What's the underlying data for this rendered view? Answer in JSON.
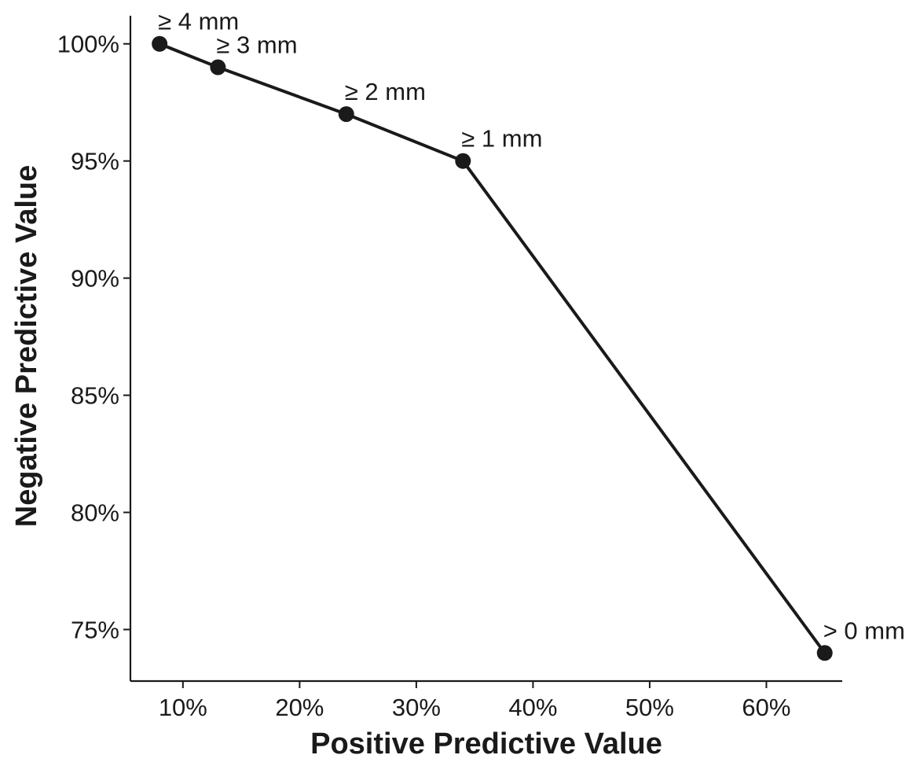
{
  "chart_data": {
    "type": "line",
    "title": "",
    "xlabel": "Positive Predictive Value",
    "ylabel": "Negative Predictive Value",
    "xlim": [
      5.5,
      66.5
    ],
    "ylim": [
      72.8,
      101.2
    ],
    "x_ticks": [
      10,
      20,
      30,
      40,
      50,
      60
    ],
    "x_tick_labels": [
      "10%",
      "20%",
      "30%",
      "40%",
      "50%",
      "60%"
    ],
    "y_ticks": [
      75,
      80,
      85,
      90,
      95,
      100
    ],
    "y_tick_labels": [
      "75%",
      "80%",
      "85%",
      "90%",
      "95%",
      "100%"
    ],
    "grid": false,
    "legend": "none",
    "series": [
      {
        "points": [
          {
            "x": 8,
            "y": 100,
            "label": "≥ 4 mm"
          },
          {
            "x": 13,
            "y": 99,
            "label": "≥ 3 mm"
          },
          {
            "x": 24,
            "y": 97,
            "label": "≥ 2 mm"
          },
          {
            "x": 34,
            "y": 95,
            "label": "≥ 1 mm"
          },
          {
            "x": 65,
            "y": 74,
            "label": "> 0 mm"
          }
        ]
      }
    ],
    "colors": {
      "line": "#1a1a1a",
      "point": "#1a1a1a",
      "axis": "#1a1a1a"
    }
  }
}
